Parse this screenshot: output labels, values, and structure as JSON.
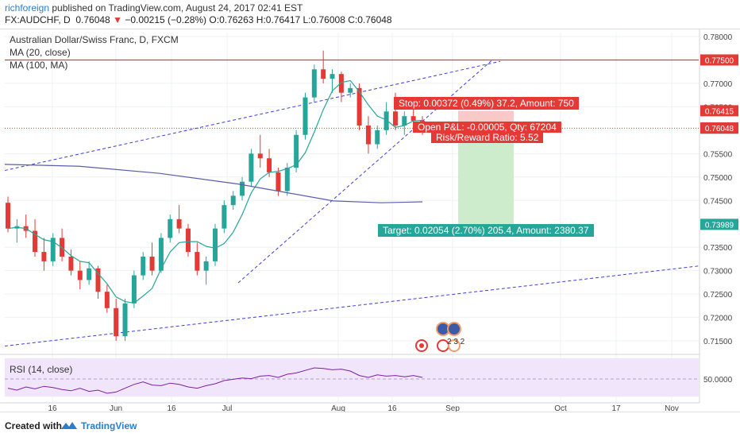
{
  "header": {
    "author": "richforeign",
    "published_text": "published on TradingView.com, August 24, 2017 02:41 EST",
    "symbol": "FX:AUDCHF, D",
    "last": "0.76048",
    "change_arrow": "▼",
    "change": "−0.00215 (−0.28%)",
    "ohlc": "O:0.76263 H:0.76417 L:0.76008 C:0.76048"
  },
  "legend": {
    "title": "Australian Dollar/Swiss Franc, D, FXCM",
    "ma20": "MA (20, close)",
    "ma100": "MA (100, MA)",
    "rsi": "RSI (14, close)"
  },
  "price_axis": {
    "ticks": [
      "0.78000",
      "0.77000",
      "0.76500",
      "0.76000",
      "0.75500",
      "0.75000",
      "0.74500",
      "0.73500",
      "0.73000",
      "0.72500",
      "0.72000",
      "0.71500"
    ],
    "tags": [
      {
        "value": "0.77500",
        "color": "#e53935"
      },
      {
        "value": "0.76415",
        "color": "#e53935"
      },
      {
        "value": "0.76043",
        "color": "#555555"
      },
      {
        "value": "0.76048",
        "color": "#e53935"
      },
      {
        "value": "0.73989",
        "color": "#26a69a"
      }
    ],
    "rsi_tick": "50.0000"
  },
  "time_axis": {
    "labels": [
      "16",
      "Jun",
      "16",
      "Jul",
      "Aug",
      "16",
      "Sep",
      "Oct",
      "17",
      "Nov"
    ]
  },
  "position": {
    "stop_label": "Stop: 0.00372 (0.49%) 37.2, Amount: 750",
    "pnl_label": "Open P&L: -0.00005, Qty: 67204",
    "rr_label": "Risk/Reward Ratio: 5.52",
    "target_label": "Target: 0.02054 (2.70%) 205.4, Amount: 2380.37"
  },
  "events": {
    "badge_text": "2 3 2"
  },
  "footer": {
    "created_with": "Created with",
    "brand": "TradingView"
  },
  "colors": {
    "bull": "#26a69a",
    "bear": "#e53935",
    "ma20": "#26a69a",
    "ma100": "#5b5ea6",
    "trend": "#3d3ddb",
    "rsi": "#7b1fa2",
    "rsi_fill": "#f1e5fb",
    "stop_zone": "#f8c9c7",
    "target_zone": "#cdeccb"
  },
  "chart_data": {
    "type": "candlestick",
    "symbol": "AUDCHF",
    "ohlc_sample": [
      [
        0.7445,
        0.7458,
        0.7382,
        0.739
      ],
      [
        0.739,
        0.741,
        0.736,
        0.7395
      ],
      [
        0.7395,
        0.742,
        0.737,
        0.7385
      ],
      [
        0.7385,
        0.741,
        0.733,
        0.734
      ],
      [
        0.734,
        0.737,
        0.73,
        0.732
      ],
      [
        0.732,
        0.738,
        0.731,
        0.737
      ],
      [
        0.737,
        0.739,
        0.732,
        0.733
      ],
      [
        0.733,
        0.7345,
        0.729,
        0.73
      ],
      [
        0.73,
        0.732,
        0.726,
        0.728
      ],
      [
        0.728,
        0.732,
        0.727,
        0.7305
      ],
      [
        0.7305,
        0.731,
        0.724,
        0.7255
      ],
      [
        0.7255,
        0.727,
        0.721,
        0.722
      ],
      [
        0.722,
        0.724,
        0.715,
        0.716
      ],
      [
        0.716,
        0.724,
        0.715,
        0.723
      ],
      [
        0.723,
        0.73,
        0.722,
        0.729
      ],
      [
        0.729,
        0.734,
        0.728,
        0.733
      ],
      [
        0.733,
        0.736,
        0.729,
        0.73
      ],
      [
        0.73,
        0.738,
        0.7295,
        0.737
      ],
      [
        0.737,
        0.742,
        0.736,
        0.741
      ],
      [
        0.741,
        0.744,
        0.738,
        0.739
      ],
      [
        0.739,
        0.74,
        0.733,
        0.734
      ],
      [
        0.734,
        0.736,
        0.729,
        0.73
      ],
      [
        0.73,
        0.733,
        0.727,
        0.732
      ],
      [
        0.732,
        0.74,
        0.731,
        0.739
      ],
      [
        0.739,
        0.745,
        0.738,
        0.744
      ],
      [
        0.744,
        0.747,
        0.743,
        0.746
      ],
      [
        0.746,
        0.75,
        0.745,
        0.749
      ],
      [
        0.749,
        0.756,
        0.748,
        0.755
      ],
      [
        0.755,
        0.759,
        0.752,
        0.754
      ],
      [
        0.754,
        0.756,
        0.75,
        0.751
      ],
      [
        0.751,
        0.752,
        0.746,
        0.747
      ],
      [
        0.747,
        0.753,
        0.746,
        0.752
      ],
      [
        0.752,
        0.76,
        0.751,
        0.759
      ],
      [
        0.759,
        0.768,
        0.758,
        0.767
      ],
      [
        0.767,
        0.774,
        0.766,
        0.773
      ],
      [
        0.773,
        0.777,
        0.77,
        0.771
      ],
      [
        0.771,
        0.773,
        0.768,
        0.772
      ],
      [
        0.772,
        0.7725,
        0.766,
        0.768
      ],
      [
        0.768,
        0.77,
        0.767,
        0.769
      ],
      [
        0.769,
        0.77,
        0.76,
        0.761
      ],
      [
        0.761,
        0.763,
        0.755,
        0.757
      ],
      [
        0.757,
        0.761,
        0.756,
        0.76
      ],
      [
        0.76,
        0.766,
        0.759,
        0.764
      ],
      [
        0.764,
        0.768,
        0.76,
        0.761
      ],
      [
        0.761,
        0.764,
        0.759,
        0.763
      ],
      [
        0.763,
        0.766,
        0.761,
        0.762
      ],
      [
        0.762,
        0.763,
        0.759,
        0.7605
      ]
    ],
    "price_ticks": [
      0.78,
      0.77,
      0.765,
      0.76,
      0.755,
      0.75,
      0.745,
      0.735,
      0.73,
      0.725,
      0.72,
      0.715
    ],
    "resistance": 0.775,
    "entry": 0.76043,
    "stop": 0.76415,
    "target": 0.73989,
    "rsi_level": 50.0
  }
}
